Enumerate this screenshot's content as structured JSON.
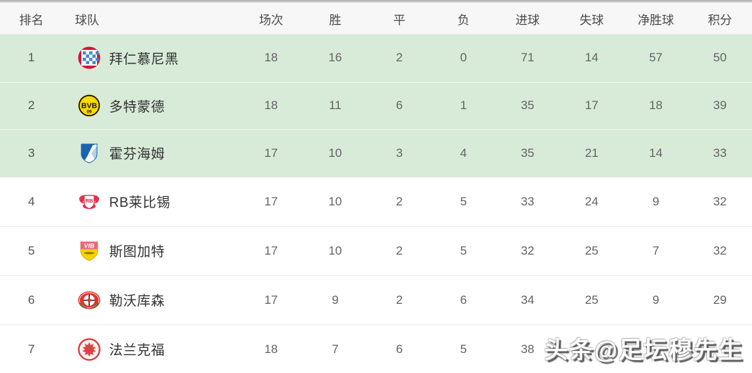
{
  "table": {
    "headers": [
      "排名",
      "球队",
      "场次",
      "胜",
      "平",
      "负",
      "进球",
      "失球",
      "净胜球",
      "积分"
    ],
    "rows": [
      {
        "rank": "1",
        "logo": "bayern",
        "team": "拜仁慕尼黑",
        "played": "18",
        "win": "16",
        "draw": "2",
        "loss": "0",
        "gf": "71",
        "ga": "14",
        "gd": "57",
        "pts": "50",
        "highlight": true
      },
      {
        "rank": "2",
        "logo": "dortmund",
        "team": "多特蒙德",
        "played": "18",
        "win": "11",
        "draw": "6",
        "loss": "1",
        "gf": "35",
        "ga": "17",
        "gd": "18",
        "pts": "39",
        "highlight": true
      },
      {
        "rank": "3",
        "logo": "hoffenheim",
        "team": "霍芬海姆",
        "played": "17",
        "win": "10",
        "draw": "3",
        "loss": "4",
        "gf": "35",
        "ga": "21",
        "gd": "14",
        "pts": "33",
        "highlight": true
      },
      {
        "rank": "4",
        "logo": "leipzig",
        "team": "RB莱比锡",
        "played": "17",
        "win": "10",
        "draw": "2",
        "loss": "5",
        "gf": "33",
        "ga": "24",
        "gd": "9",
        "pts": "32",
        "highlight": false
      },
      {
        "rank": "5",
        "logo": "stuttgart",
        "team": "斯图加特",
        "played": "17",
        "win": "10",
        "draw": "2",
        "loss": "5",
        "gf": "32",
        "ga": "25",
        "gd": "7",
        "pts": "32",
        "highlight": false
      },
      {
        "rank": "6",
        "logo": "leverkusen",
        "team": "勒沃库森",
        "played": "17",
        "win": "9",
        "draw": "2",
        "loss": "6",
        "gf": "34",
        "ga": "25",
        "gd": "9",
        "pts": "29",
        "highlight": false
      },
      {
        "rank": "7",
        "logo": "frankfurt",
        "team": "法兰克福",
        "played": "18",
        "win": "7",
        "draw": "6",
        "loss": "5",
        "gf": "38",
        "ga": "",
        "gd": "",
        "pts": "",
        "highlight": false
      }
    ]
  },
  "watermark": {
    "text": "头条@足坛穆先生"
  },
  "colors": {
    "highlight_row": "#d7ebd8",
    "header_bg": "#f7f7f7",
    "row_separator": "#ececec",
    "team_text": "#333333",
    "stat_text": "#646464"
  }
}
